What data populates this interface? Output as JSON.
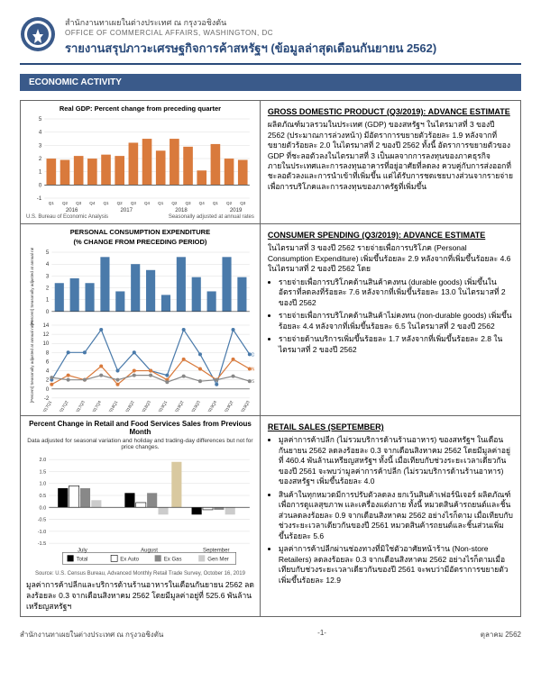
{
  "header": {
    "agency_th": "สำนักงานทาเผยในต่างประเทศ ณ กรุงวอชิงตัน",
    "agency_en": "OFFICE OF COMMERCIAL AFFAIRS, WASHINGTON, DC",
    "title": "รายงานสรุปภาวะเศรษฐกิจการค้าสหรัฐฯ (ข้อมูลล่าสุดเดือนกันยายน 2562)"
  },
  "section_label": "ECONOMIC ACTIVITY",
  "gdp_chart": {
    "type": "bar",
    "title": "Real GDP:  Percent change from preceding quarter",
    "source_left": "U.S. Bureau of Economic Analysis",
    "source_right": "Seasonally adjusted at annual rates",
    "ylim": [
      -1,
      5
    ],
    "ytick_step": 1,
    "bar_color": "#d97a3c",
    "grid_color": "#dddddd",
    "axis_color": "#333333",
    "years": [
      "2016",
      "2017",
      "2018",
      "2019"
    ],
    "quarters": [
      "Q1",
      "Q2",
      "Q3",
      "Q4",
      "Q1",
      "Q2",
      "Q3",
      "Q4",
      "Q1",
      "Q2",
      "Q3",
      "Q4",
      "Q1",
      "Q2",
      "Q3"
    ],
    "values": [
      2.0,
      1.9,
      2.2,
      2.0,
      2.3,
      2.2,
      3.2,
      3.5,
      2.6,
      3.5,
      2.9,
      1.1,
      3.1,
      2.0,
      1.9
    ]
  },
  "gdp_text": {
    "heading": "GROSS DOMESTIC PRODUCT (Q3/2019): ADVANCE ESTIMATE",
    "body": "ผลิตภัณฑ์มวลรวมในประเทศ (GDP) ของสหรัฐฯ ในไตรมาสที่ 3 ของปี 2562 (ประมาณการล่วงหน้า) มีอัตราการขยายตัวร้อยละ 1.9 หลังจากที่ขยายตัวร้อยละ 2.0 ในไตรมาสที่ 2 ของปี 2562 ทั้งนี้ อัตราการขยายตัวของ GDP ที่ชะลอตัวลงในไตรมาสที่ 3 เป็นผลจากการลงทุนของภาคธุรกิจภายในประเทศและการลงทุนอาคารที่อยู่อาศัยที่ลดลง ควบคู่กับการส่งออกที่ชะลอตัวลงและการนำเข้าที่เพิ่มขึ้น แต่ได้รับการชดเชยบางส่วนจากรายจ่ายเพื่อการบริโภคและการลงทุนของภาครัฐที่เพิ่มขึ้น"
  },
  "pce_chart": {
    "title1": "PERSONAL CONSUMPTION EXPENDITURE",
    "title2": "(% CHANGE FROM PRECEDING PERIOD)",
    "ylabel": "[Percent] Seasonally adjusted at annual rates",
    "top": {
      "ylim": [
        0,
        5
      ],
      "ytick_step": 1,
      "bar_color": "#4a7aaa",
      "quarters": [
        "2017Q1",
        "2017Q2",
        "2017Q3",
        "2017Q4",
        "2018Q1",
        "2018Q2",
        "2018Q3",
        "2019Q1",
        "2019Q2",
        "2019Q3",
        "2019Q4",
        "2019Q2",
        "2019Q3"
      ],
      "values": [
        2.4,
        2.8,
        2.4,
        4.6,
        1.7,
        4.0,
        3.5,
        1.4,
        4.6,
        2.9,
        1.7,
        4.6,
        2.9
      ]
    },
    "bottom": {
      "ylim": [
        -2,
        14
      ],
      "ytick_step": 2,
      "series": [
        {
          "label": "DURABLE",
          "color": "#4a7aaa",
          "marker": "circle",
          "values": [
            2,
            8,
            8,
            13,
            4,
            8,
            4,
            3,
            13,
            7.6,
            1,
            13,
            7.6
          ]
        },
        {
          "label": "NON-DURABLE",
          "color": "#d97a3c",
          "marker": "circle",
          "values": [
            1,
            3,
            2,
            5,
            1,
            4,
            4,
            2,
            6.5,
            4.4,
            2,
            6.5,
            4.4
          ]
        },
        {
          "label": "SERVICES",
          "color": "#888888",
          "marker": "circle",
          "values": [
            2.5,
            2,
            2,
            3,
            2,
            3,
            3,
            1.5,
            2.8,
            1.7,
            2,
            2.8,
            1.7
          ]
        }
      ]
    }
  },
  "pce_text": {
    "heading": "CONSUMER SPENDING (Q3/2019): ADVANCE ESTIMATE",
    "intro": "ในไตรมาสที่ 3 ของปี 2562 รายจ่ายเพื่อการบริโภค (Personal Consumption Expenditure) เพิ่มขึ้นร้อยละ 2.9 หลังจากที่เพิ่มขึ้นร้อยละ 4.6 ในไตรมาสที่ 2 ของปี 2562 โดย",
    "bullets": [
      "รายจ่ายเพื่อการบริโภคด้านสินค้าคงทน (durable goods) เพิ่มขึ้นในอัตราที่ลดลงที่ร้อยละ 7.6 หลังจากที่เพิ่มขึ้นร้อยละ 13.0 ในไตรมาสที่ 2 ของปี 2562",
      "รายจ่ายเพื่อการบริโภคด้านสินค้าไม่คงทน (non-durable goods) เพิ่มขึ้นร้อยละ 4.4 หลังจากที่เพิ่มขึ้นร้อยละ 6.5 ในไตรมาสที่ 2 ของปี 2562",
      "รายจ่ายด้านบริการเพิ่มขึ้นร้อยละ 1.7 หลังจากที่เพิ่มขึ้นร้อยละ 2.8 ในไตรมาสที่ 2 ของปี 2562"
    ]
  },
  "retail_chart": {
    "title": "Percent Change in Retail and Food Services Sales from Previous Month",
    "subtitle": "Data adjusted for seasonal variation and holiday and trading-day differences but not for price changes.",
    "source": "Source: U.S. Census Bureau, Advanced Monthly Retail Trade Survey, October 16, 2019",
    "ylim": [
      -1.5,
      2.0
    ],
    "ytick_step": 0.5,
    "months": [
      "July",
      "August",
      "September"
    ],
    "series": [
      {
        "label": "Total",
        "color": "#000000",
        "values": [
          0.8,
          0.6,
          -0.3
        ]
      },
      {
        "label": "Ex Auto",
        "color": "#ffffff",
        "border": "#000",
        "values": [
          0.9,
          0.2,
          -0.1
        ]
      },
      {
        "label": "Ex Gas",
        "color": "#888888",
        "values": [
          0.8,
          0.6,
          -0.1
        ]
      },
      {
        "label": "Gen Mer",
        "color": "#cccccc",
        "values": [
          0.3,
          -0.3,
          -0.3
        ]
      }
    ],
    "special_bar": {
      "month": "August",
      "value": 1.9,
      "color": "#d9c9a0"
    }
  },
  "retail_text": {
    "heading": "RETAIL SALES (SEPTEMBER)",
    "bullets": [
      "มูลค่าการค้าปลีก (ไม่รวมบริการด้านร้านอาหาร) ของสหรัฐฯ ในเดือนกันยายน 2562 ลดลงร้อยละ 0.3 จากเดือนสิงหาคม 2562 โดยมีมูลค่าอยู่ที่ 460.4 พันล้านเหรียญสหรัฐฯ ทั้งนี้ เมื่อเทียบกับช่วงระยะเวลาเดียวกันของปี 2561 จะพบว่ามูลค่าการค้าปลีก (ไม่รวมบริการด้านร้านอาหาร) ของสหรัฐฯ เพิ่มขึ้นร้อยละ 4.0",
      "สินค้าในทุกหมวดมีการปรับตัวลดลง ยกเว้นสินค้าเฟอร์นิเจอร์ ผลิตภัณฑ์เพื่อการดูแลสุขภาพ และเครื่องแต่งกาย ทั้งนี้ หมวดสินค้ารถยนต์และชิ้นส่วนลดลงร้อยละ 0.9 จากเดือนสิงหาคม 2562 อย่างไรก็ตาม เมื่อเทียบกับช่วงระยะเวลาเดียวกันของปี 2561 หมวดสินค้ารถยนต์และชิ้นส่วนเพิ่มขึ้นร้อยละ 5.6",
      "มูลค่าการค้าปลีกผ่านช่องทางที่มิใช่ตัวอาศัยหน้าร้าน (Non-store Retailers) ลดลงร้อยละ 0.3 จากเดือนสิงหาคม 2562 อย่างไรก็ตามเมื่อเทียบกับช่วงระยะเวลาเดียวกันของปี 2561 จะพบว่ามีอัตราการขยายตัวเพิ่มขึ้นร้อยละ 12.9"
    ]
  },
  "bottom_note": "มูลค่าการค้าปลีกและบริการด้านร้านอาหารในเดือนกันยายน 2562 ลดลงร้อยละ 0.3 จากเดือนสิงหาคม 2562 โดยมีมูลค่าอยู่ที่ 525.6 พันล้านเหรียญสหรัฐฯ",
  "footer": {
    "left": "สำนักงานทาเผยในต่างประเทศ ณ กรุงวอชิงตัน",
    "center": "-1-",
    "right": "ตุลาคม  2562"
  }
}
